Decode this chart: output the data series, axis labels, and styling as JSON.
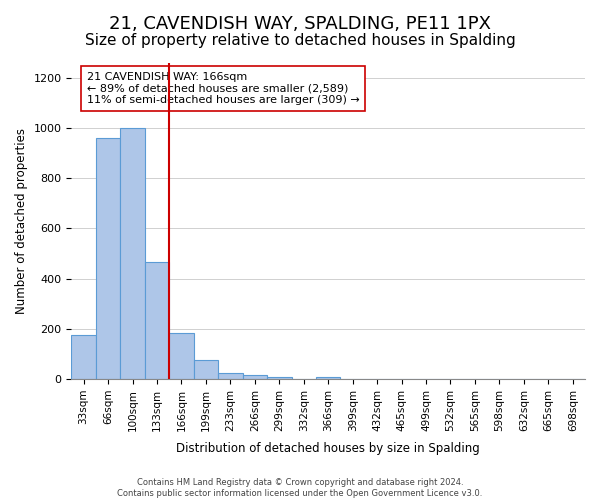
{
  "title": "21, CAVENDISH WAY, SPALDING, PE11 1PX",
  "subtitle": "Size of property relative to detached houses in Spalding",
  "xlabel": "Distribution of detached houses by size in Spalding",
  "ylabel": "Number of detached properties",
  "bar_labels": [
    "33sqm",
    "66sqm",
    "100sqm",
    "133sqm",
    "166sqm",
    "199sqm",
    "233sqm",
    "266sqm",
    "299sqm",
    "332sqm",
    "366sqm",
    "399sqm",
    "432sqm",
    "465sqm",
    "499sqm",
    "532sqm",
    "565sqm",
    "598sqm",
    "632sqm",
    "665sqm",
    "698sqm"
  ],
  "bar_values": [
    175,
    960,
    1000,
    465,
    185,
    75,
    25,
    15,
    10,
    0,
    10,
    0,
    0,
    0,
    0,
    0,
    0,
    0,
    0,
    0,
    0
  ],
  "bar_color": "#aec6e8",
  "bar_edge_color": "#5b9bd5",
  "vline_index": 4,
  "vline_color": "#cc0000",
  "ylim": [
    0,
    1260
  ],
  "yticks": [
    0,
    200,
    400,
    600,
    800,
    1000,
    1200
  ],
  "annotation_line1": "21 CAVENDISH WAY: 166sqm",
  "annotation_line2": "← 89% of detached houses are smaller (2,589)",
  "annotation_line3": "11% of semi-detached houses are larger (309) →",
  "footer_line1": "Contains HM Land Registry data © Crown copyright and database right 2024.",
  "footer_line2": "Contains public sector information licensed under the Open Government Licence v3.0.",
  "background_color": "#ffffff",
  "grid_color": "#d0d0d0",
  "title_fontsize": 13,
  "subtitle_fontsize": 11
}
